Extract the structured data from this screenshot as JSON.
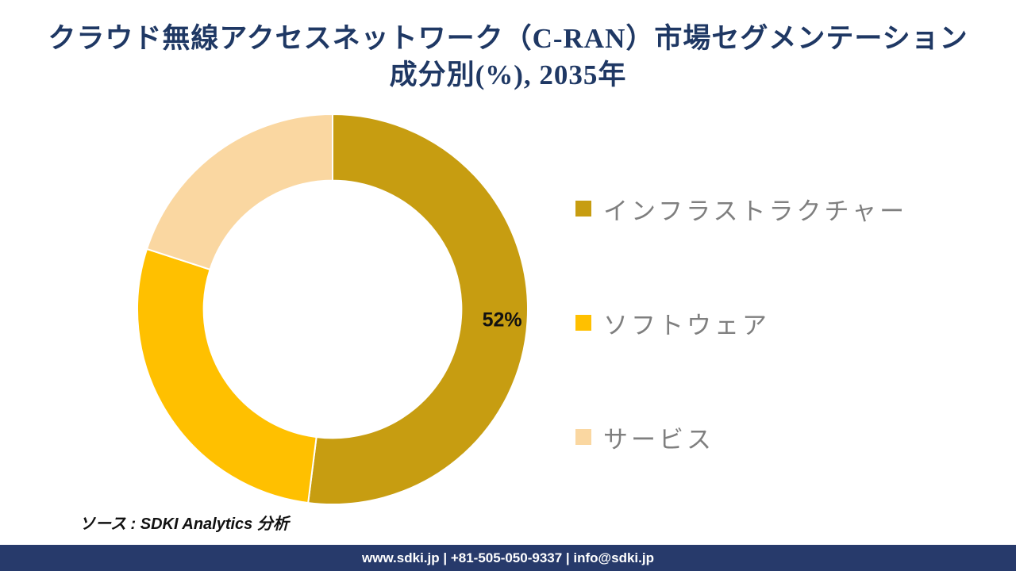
{
  "title": {
    "line1": "クラウド無線アクセスネットワーク（C-RAN）市場セグメンテーション",
    "line2": "成分別(%), 2035年"
  },
  "chart_data": {
    "type": "pie",
    "subtype": "donut",
    "title": "クラウド無線アクセスネットワーク（C-RAN）市場セグメンテーション 成分別(%), 2035年",
    "unit": "%",
    "categories": [
      "インフラストラクチャー",
      "ソフトウェア",
      "サービス"
    ],
    "values": [
      52,
      28,
      20
    ],
    "colors": [
      "#C79D11",
      "#FFC000",
      "#FAD7A1"
    ],
    "data_labels": [
      "52%",
      "",
      ""
    ],
    "start_angle_deg": 0,
    "direction": "clockwise",
    "inner_radius_ratio": 0.66,
    "legend_position": "right",
    "separator_color": "#FFFFFF"
  },
  "legend": {
    "items": [
      {
        "label": "インフラストラクチャー",
        "color": "#C79D11"
      },
      {
        "label": "ソフトウェア",
        "color": "#FFC000"
      },
      {
        "label": "サービス",
        "color": "#FAD7A1"
      }
    ]
  },
  "source": {
    "text": "ソース : SDKI Analytics 分析"
  },
  "footer": {
    "text": "www.sdki.jp | +81-505-050-9337 | info@sdki.jp",
    "background": "#273A6B"
  },
  "colors": {
    "title_text": "#1F3864",
    "legend_text": "#7F7F7F",
    "data_label_text": "#111111"
  }
}
